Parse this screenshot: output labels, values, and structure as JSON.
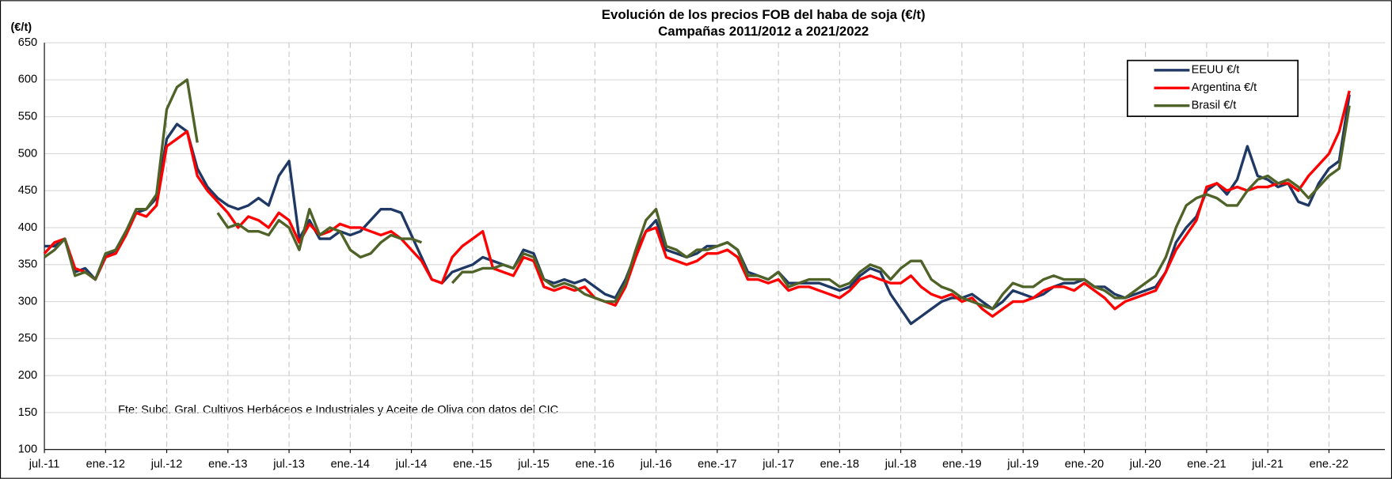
{
  "chart_data": {
    "type": "line",
    "title": "Evolución de los precios FOB del haba de soja (€/t)",
    "subtitle": "Campañas 2011/2012 a 2021/2022",
    "ylabel": "(€/t)",
    "annotation": "Fte: Subd. Gral. Cultivos Herbáceos e Industriales y Aceite de Oliva con datos del CIC",
    "ylim": [
      100,
      650
    ],
    "yticks": [
      100,
      150,
      200,
      250,
      300,
      350,
      400,
      450,
      500,
      550,
      600,
      650
    ],
    "grid": true,
    "legend": "upper right",
    "categories": [
      "jul.-11",
      null,
      null,
      null,
      null,
      null,
      "ene.-12",
      null,
      null,
      null,
      null,
      null,
      "jul.-12",
      null,
      null,
      null,
      null,
      null,
      "ene.-13",
      null,
      null,
      null,
      null,
      null,
      "jul.-13",
      null,
      null,
      null,
      null,
      null,
      "ene.-14",
      null,
      null,
      null,
      null,
      null,
      "jul.-14",
      null,
      null,
      null,
      null,
      null,
      "ene.-15",
      null,
      null,
      null,
      null,
      null,
      "jul.-15",
      null,
      null,
      null,
      null,
      null,
      "ene.-16",
      null,
      null,
      null,
      null,
      null,
      "jul.-16",
      null,
      null,
      null,
      null,
      null,
      "ene.-17",
      null,
      null,
      null,
      null,
      null,
      "jul.-17",
      null,
      null,
      null,
      null,
      null,
      "ene.-18",
      null,
      null,
      null,
      null,
      null,
      "jul.-18",
      null,
      null,
      null,
      null,
      null,
      "ene.-19",
      null,
      null,
      null,
      null,
      null,
      "jul.-19",
      null,
      null,
      null,
      null,
      null,
      "ene.-20",
      null,
      null,
      null,
      null,
      null,
      "jul.-20",
      null,
      null,
      null,
      null,
      null,
      "ene.-21",
      null,
      null,
      null,
      null,
      null,
      "jul.-21",
      null,
      null,
      null,
      null,
      null,
      "ene.-22",
      null,
      null
    ],
    "series": [
      {
        "name": "EEUU €/t",
        "color": "#1f3864",
        "values": [
          375,
          375,
          385,
          340,
          345,
          330,
          360,
          370,
          395,
          420,
          425,
          440,
          520,
          540,
          530,
          480,
          455,
          440,
          430,
          425,
          430,
          440,
          430,
          470,
          490,
          385,
          410,
          385,
          385,
          395,
          390,
          395,
          410,
          425,
          425,
          420,
          390,
          360,
          330,
          325,
          340,
          345,
          350,
          360,
          355,
          350,
          345,
          370,
          365,
          330,
          325,
          330,
          325,
          330,
          320,
          310,
          305,
          330,
          365,
          395,
          410,
          370,
          365,
          360,
          365,
          375,
          375,
          380,
          370,
          340,
          335,
          330,
          340,
          325,
          325,
          325,
          325,
          320,
          315,
          320,
          335,
          345,
          340,
          310,
          290,
          270,
          280,
          290,
          300,
          305,
          305,
          310,
          300,
          290,
          300,
          315,
          310,
          305,
          310,
          320,
          325,
          325,
          330,
          320,
          320,
          310,
          305,
          310,
          315,
          320,
          340,
          380,
          400,
          415,
          450,
          460,
          445,
          465,
          510,
          470,
          465,
          455,
          460,
          435,
          430,
          460,
          480,
          490,
          580
        ]
      },
      {
        "name": "Argentina €/t",
        "color": "#ff0000",
        "values": [
          365,
          380,
          385,
          345,
          340,
          330,
          360,
          365,
          390,
          420,
          415,
          430,
          510,
          520,
          530,
          470,
          450,
          435,
          420,
          400,
          415,
          410,
          400,
          420,
          410,
          380,
          405,
          390,
          395,
          405,
          400,
          400,
          395,
          390,
          395,
          385,
          370,
          355,
          330,
          325,
          360,
          375,
          385,
          395,
          345,
          340,
          335,
          360,
          355,
          320,
          315,
          320,
          315,
          320,
          305,
          300,
          295,
          320,
          360,
          395,
          400,
          360,
          355,
          350,
          355,
          365,
          365,
          370,
          360,
          330,
          330,
          325,
          330,
          315,
          320,
          320,
          315,
          310,
          305,
          315,
          330,
          335,
          330,
          325,
          325,
          335,
          320,
          310,
          305,
          310,
          300,
          305,
          290,
          280,
          290,
          300,
          300,
          305,
          315,
          320,
          320,
          315,
          325,
          315,
          305,
          290,
          300,
          305,
          310,
          315,
          340,
          370,
          390,
          410,
          455,
          460,
          450,
          455,
          450,
          455,
          455,
          460,
          460,
          450,
          470,
          485,
          500,
          530,
          585
        ]
      },
      {
        "name": "Brasil €/t",
        "color": "#4f6228",
        "values": [
          360,
          370,
          385,
          335,
          340,
          330,
          365,
          370,
          395,
          425,
          425,
          445,
          560,
          590,
          600,
          515,
          null,
          420,
          400,
          405,
          395,
          395,
          390,
          410,
          400,
          370,
          425,
          390,
          400,
          395,
          370,
          360,
          365,
          380,
          390,
          385,
          385,
          380,
          null,
          null,
          325,
          340,
          340,
          345,
          345,
          350,
          345,
          365,
          360,
          330,
          320,
          325,
          320,
          310,
          305,
          300,
          300,
          325,
          370,
          410,
          425,
          375,
          370,
          360,
          370,
          370,
          375,
          380,
          370,
          335,
          335,
          330,
          340,
          320,
          325,
          330,
          330,
          330,
          320,
          325,
          340,
          350,
          345,
          330,
          345,
          355,
          355,
          330,
          320,
          315,
          305,
          300,
          295,
          290,
          310,
          325,
          320,
          320,
          330,
          335,
          330,
          330,
          330,
          320,
          315,
          305,
          305,
          315,
          325,
          335,
          360,
          400,
          430,
          440,
          445,
          440,
          430,
          430,
          450,
          465,
          470,
          460,
          465,
          455,
          440,
          455,
          470,
          480,
          565
        ]
      }
    ]
  }
}
